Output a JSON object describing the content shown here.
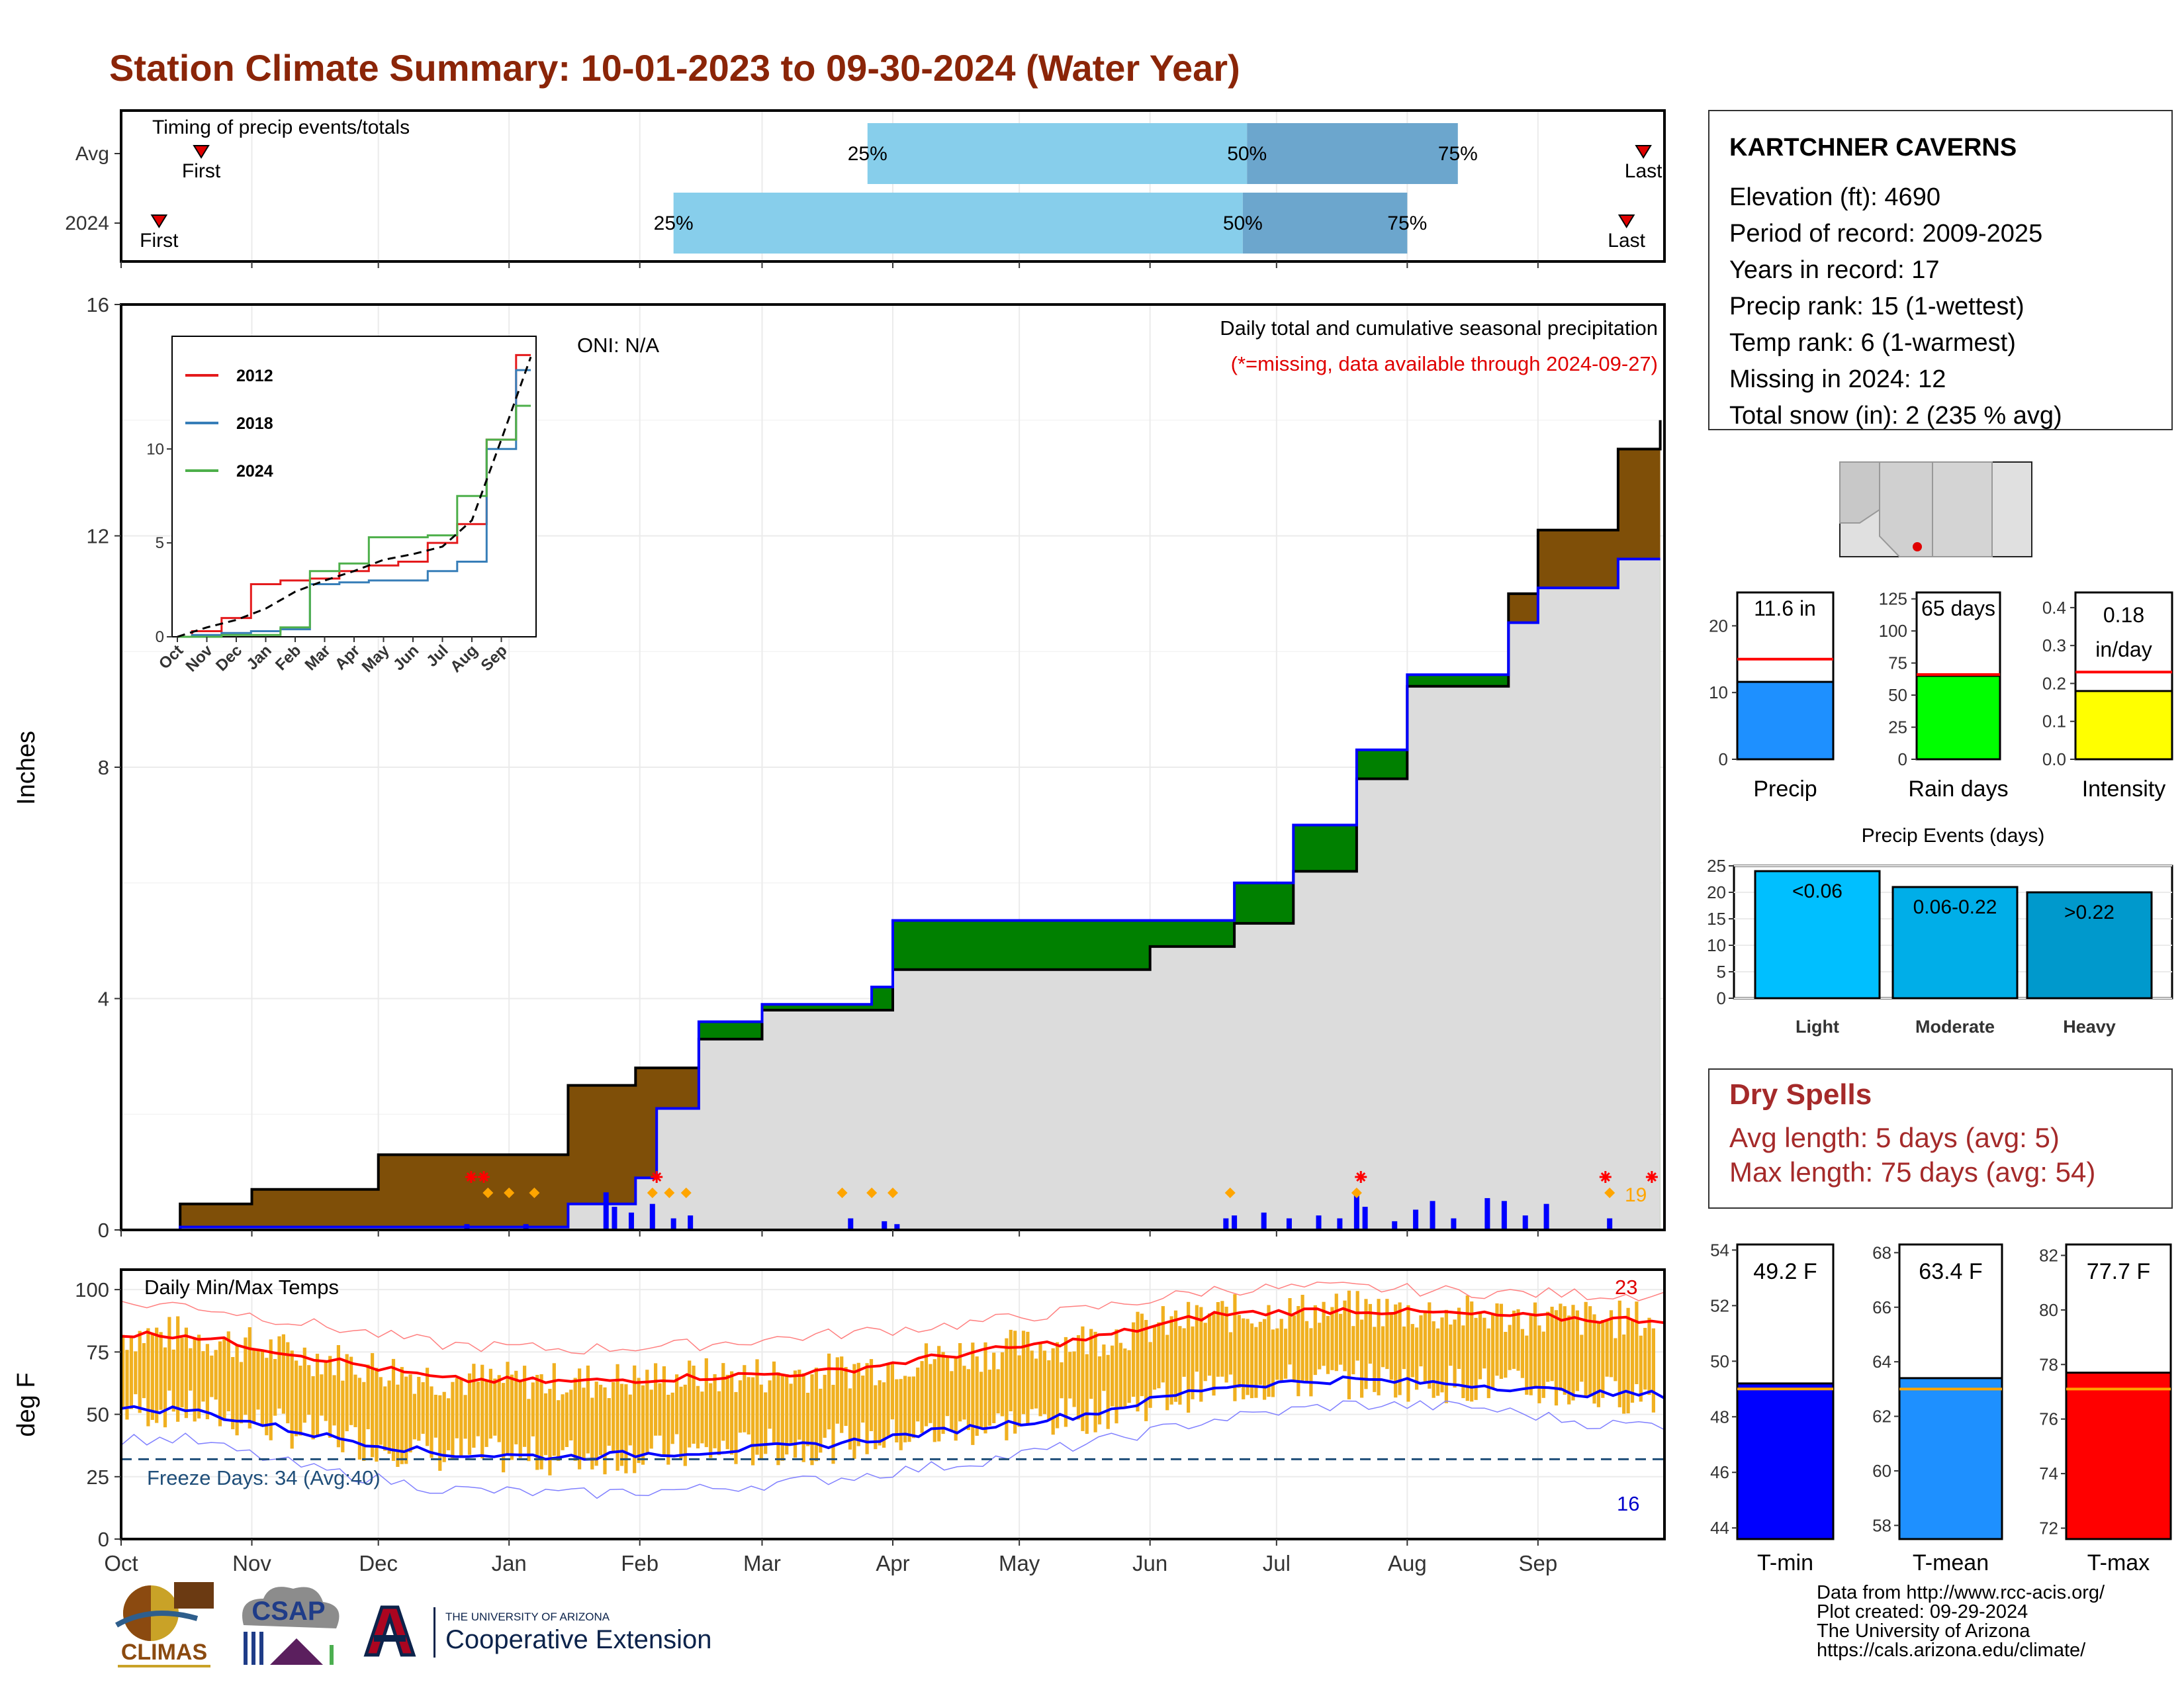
{
  "title": "Station Climate Summary: 10-01-2023 to 09-30-2024 (Water Year)",
  "colors": {
    "title": "#8B2508",
    "cum_avg_above": "#7F4F08",
    "cum_above_avg": "#008000",
    "cum_fill": "#DCDCDC",
    "daily_bar": "#0000FF",
    "temp_bar": "#F0B020",
    "tmax_line": "#FF0000",
    "tmin_line": "#0000FF"
  },
  "timing": {
    "label": "Timing of precip events/totals",
    "rows": [
      {
        "name": "Avg",
        "first_label": "First",
        "last_label": "Last",
        "first_date": "2023-10-20",
        "last_date": "2024-09-26",
        "p25": "2024-03-26",
        "p50": "2024-06-24",
        "p75": "2024-08-13",
        "p25_label": "25%",
        "p50_label": "50%",
        "p75_label": "75%"
      },
      {
        "name": "2024",
        "first_label": "First",
        "last_label": "Last",
        "first_date": "2023-10-10",
        "last_date": "2024-09-22",
        "p25": "2024-02-09",
        "p50": "2024-06-23",
        "p75": "2024-08-01",
        "p25_label": "25%",
        "p50_label": "50%",
        "p75_label": "75%"
      }
    ]
  },
  "precip_panel": {
    "ylabel": "Inches",
    "oni": "ONI: N/A",
    "caption": "Daily total and cumulative seasonal precipitation",
    "missing_note": "(*=missing, data available through 2024-09-27)",
    "count_label": "19",
    "yticks": [
      "0",
      "4",
      "8",
      "12",
      "16"
    ]
  },
  "inset": {
    "legend": [
      {
        "name": "2012",
        "color": "#E41A1C"
      },
      {
        "name": "2018",
        "color": "#377EB8"
      },
      {
        "name": "2024",
        "color": "#4DAF4A"
      }
    ],
    "yticks": [
      "0",
      "5",
      "10"
    ],
    "xticks": [
      "Oct",
      "Nov",
      "Dec",
      "Jan",
      "Feb",
      "Mar",
      "Apr",
      "May",
      "Jun",
      "Jul",
      "Aug",
      "Sep"
    ]
  },
  "temp_panel": {
    "label": "Daily Min/Max Temps",
    "ylabel": "deg F",
    "freeze_label": "Freeze Days: 34 (Avg:40)",
    "max_count": "23",
    "min_count": "16",
    "yticks": [
      "0",
      "25",
      "50",
      "75",
      "100"
    ],
    "months": [
      "Oct",
      "Nov",
      "Dec",
      "Jan",
      "Feb",
      "Mar",
      "Apr",
      "May",
      "Jun",
      "Jul",
      "Aug",
      "Sep"
    ]
  },
  "station": {
    "name": "KARTCHNER CAVERNS",
    "lines": [
      "Elevation (ft): 4690",
      "Period of record: 2009-2025",
      "Years in record: 17",
      "Precip rank: 15 (1-wettest)",
      "Temp rank: 6 (1-warmest)",
      "Missing in 2024: 12",
      "Total snow (in): 2 (235 % avg)"
    ]
  },
  "precip_bars": [
    {
      "label": "Precip",
      "value_text": "11.6 in",
      "value": 11.6,
      "avg": 15.0,
      "yticks": [
        "0",
        "10",
        "20"
      ],
      "color": "#1E90FF"
    },
    {
      "label": "Rain days",
      "value_text": "65 days",
      "value": 65,
      "avg": 66,
      "yticks": [
        "0",
        "25",
        "50",
        "75",
        "100",
        "125"
      ],
      "color": "#00FF00"
    },
    {
      "label": "Intensity",
      "value_text_1": "0.18",
      "value_text_2": "in/day",
      "value": 0.18,
      "avg": 0.23,
      "yticks": [
        "0.0",
        "0.1",
        "0.2",
        "0.3",
        "0.4"
      ],
      "color": "#FFFF00"
    }
  ],
  "events": {
    "title": "Precip Events (days)",
    "yticks": [
      "0",
      "5",
      "10",
      "15",
      "20",
      "25"
    ],
    "bars": [
      {
        "name": "Light",
        "label": "<0.06",
        "value": 24,
        "color": "#00BFFF"
      },
      {
        "name": "Moderate",
        "label": "0.06-0.22",
        "value": 21,
        "color": "#00AEE8"
      },
      {
        "name": "Heavy",
        "label": ">0.22",
        "value": 20,
        "color": "#0099CC"
      }
    ]
  },
  "dry_spells": {
    "title": "Dry Spells",
    "avg_line": "Avg length: 5 days (avg: 5)",
    "max_line": "Max length: 75 days (avg: 54)"
  },
  "temp_bars": [
    {
      "label": "T-min",
      "value_text": "49.2 F",
      "value": 49.2,
      "avg": 49.0,
      "ymin": 43.6,
      "ymax": 54.2,
      "yticks": [
        "44",
        "46",
        "48",
        "50",
        "52",
        "54"
      ],
      "color": "#0000FF"
    },
    {
      "label": "T-mean",
      "value_text": "63.4 F",
      "value": 63.4,
      "avg": 63.0,
      "ymin": 57.5,
      "ymax": 68.3,
      "yticks": [
        "58",
        "60",
        "62",
        "64",
        "66",
        "68"
      ],
      "color": "#1E90FF"
    },
    {
      "label": "T-max",
      "value_text": "77.7 F",
      "value": 77.7,
      "avg": 77.1,
      "ymin": 71.6,
      "ymax": 82.4,
      "yticks": [
        "72",
        "74",
        "76",
        "78",
        "80",
        "82"
      ],
      "color": "#FF0000"
    }
  ],
  "footer": [
    "Data from http://www.rcc-acis.org/",
    "Plot created: 09-29-2024",
    "The University of Arizona",
    "https://cals.arizona.edu/climate/"
  ],
  "logos": {
    "climas": "CLIMAS",
    "csap": "CSAP",
    "ua_small": "THE UNIVERSITY OF ARIZONA",
    "ua_big": "Cooperative Extension"
  },
  "chart_data": [
    {
      "type": "area",
      "title": "Daily total and cumulative seasonal precipitation",
      "ylabel": "Inches",
      "ylim": [
        0,
        16
      ],
      "x_range": [
        "2023-10-01",
        "2024-09-30"
      ],
      "series": [
        {
          "name": "2024",
          "x": [
            "2023-10-01",
            "2023-10-15",
            "2023-11-01",
            "2023-12-01",
            "2024-01-15",
            "2024-01-31",
            "2024-02-05",
            "2024-02-15",
            "2024-03-01",
            "2024-03-27",
            "2024-04-01",
            "2024-06-01",
            "2024-06-21",
            "2024-07-05",
            "2024-07-20",
            "2024-08-01",
            "2024-08-25",
            "2024-09-01",
            "2024-09-20",
            "2024-09-27"
          ],
          "values": [
            0,
            0.05,
            0.05,
            0.05,
            0.45,
            0.9,
            2.1,
            3.6,
            3.9,
            4.2,
            5.35,
            5.35,
            6.0,
            7.0,
            8.3,
            9.6,
            10.5,
            11.1,
            11.6,
            11.6
          ]
        },
        {
          "name": "Avg",
          "x": [
            "2023-10-01",
            "2023-10-15",
            "2023-11-01",
            "2023-12-01",
            "2024-01-15",
            "2024-01-31",
            "2024-02-15",
            "2024-03-01",
            "2024-04-01",
            "2024-06-01",
            "2024-06-21",
            "2024-07-05",
            "2024-07-20",
            "2024-08-01",
            "2024-08-25",
            "2024-09-01",
            "2024-09-20",
            "2024-09-30"
          ],
          "values": [
            0,
            0.45,
            0.7,
            1.3,
            2.5,
            2.8,
            3.3,
            3.8,
            4.5,
            4.9,
            5.3,
            6.2,
            7.8,
            9.4,
            11.0,
            12.1,
            13.5,
            14.0
          ]
        }
      ]
    },
    {
      "type": "line",
      "title": "",
      "xlabel": "",
      "ylabel": "",
      "ylim": [
        0,
        16
      ],
      "categories": [
        "Oct",
        "Nov",
        "Dec",
        "Jan",
        "Feb",
        "Mar",
        "Apr",
        "May",
        "Jun",
        "Jul",
        "Aug",
        "Sep"
      ],
      "series": [
        {
          "name": "2012",
          "values": [
            0.3,
            1.0,
            2.8,
            3.0,
            3.1,
            3.5,
            3.8,
            4.0,
            5.0,
            6.0,
            10.5,
            15.0
          ]
        },
        {
          "name": "2018",
          "values": [
            0.1,
            0.2,
            0.3,
            0.4,
            2.8,
            2.9,
            3.0,
            3.0,
            3.5,
            4.0,
            10.0,
            14.2
          ]
        },
        {
          "name": "2024",
          "values": [
            0.0,
            0.1,
            0.1,
            0.5,
            3.5,
            3.9,
            5.3,
            5.3,
            5.4,
            7.5,
            10.5,
            12.3
          ]
        }
      ]
    },
    {
      "type": "line",
      "title": "Daily Min/Max Temps",
      "ylabel": "deg F",
      "ylim": [
        0,
        108
      ],
      "categories": [
        "Oct",
        "Nov",
        "Dec",
        "Jan",
        "Feb",
        "Mar",
        "Apr",
        "May",
        "Jun",
        "Jul",
        "Aug",
        "Sep"
      ],
      "series": [
        {
          "name": "Avg max",
          "values": [
            82,
            73,
            64,
            63,
            65,
            67,
            74,
            80,
            90,
            92,
            90,
            88
          ]
        },
        {
          "name": "Avg min",
          "values": [
            52,
            42,
            34,
            33,
            35,
            38,
            44,
            50,
            61,
            64,
            62,
            58
          ]
        },
        {
          "name": "Record max",
          "values": [
            94,
            86,
            78,
            76,
            78,
            82,
            86,
            92,
            100,
            101,
            99,
            98
          ]
        },
        {
          "name": "Record min",
          "values": [
            40,
            28,
            20,
            18,
            20,
            24,
            30,
            38,
            48,
            54,
            53,
            46
          ]
        }
      ],
      "freeze_line": 32
    },
    {
      "type": "bar",
      "categories": [
        "Precip"
      ],
      "values": [
        11.6
      ],
      "avg": 15.0,
      "ylim": [
        0,
        25
      ]
    },
    {
      "type": "bar",
      "categories": [
        "Rain days"
      ],
      "values": [
        65
      ],
      "avg": 66,
      "ylim": [
        0,
        125
      ]
    },
    {
      "type": "bar",
      "categories": [
        "Intensity"
      ],
      "values": [
        0.18
      ],
      "avg": 0.23,
      "ylim": [
        0,
        0.44
      ]
    },
    {
      "type": "bar",
      "title": "Precip Events (days)",
      "categories": [
        "Light",
        "Moderate",
        "Heavy"
      ],
      "values": [
        24,
        21,
        20
      ],
      "ylim": [
        0,
        25
      ]
    },
    {
      "type": "bar",
      "categories": [
        "T-min"
      ],
      "values": [
        49.2
      ],
      "avg": 49.0,
      "ylim": [
        43.6,
        54.2
      ]
    },
    {
      "type": "bar",
      "categories": [
        "T-mean"
      ],
      "values": [
        63.4
      ],
      "avg": 63.0,
      "ylim": [
        57.5,
        68.3
      ]
    },
    {
      "type": "bar",
      "categories": [
        "T-max"
      ],
      "values": [
        77.7
      ],
      "avg": 77.1,
      "ylim": [
        71.6,
        82.4
      ]
    }
  ]
}
